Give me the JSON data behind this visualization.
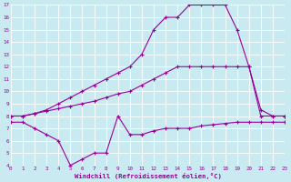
{
  "xlabel": "Windchill (Refroidissement éolien,°C)",
  "background_color": "#c8eaf0",
  "line_color": "#990099",
  "grid_color": "#ffffff",
  "xmin": 0,
  "xmax": 23,
  "ymin": 4,
  "ymax": 17,
  "line1_x": [
    0,
    1,
    2,
    3,
    4,
    5,
    6,
    7,
    8,
    9,
    10,
    11,
    12,
    13,
    14,
    15,
    16,
    17,
    18,
    19,
    20,
    21,
    22,
    23
  ],
  "line1_y": [
    8,
    8,
    8.2,
    8.5,
    9,
    9.5,
    10,
    10.5,
    11,
    11.5,
    12,
    13,
    15,
    16,
    16,
    17,
    17,
    17,
    17,
    15,
    12,
    8,
    8,
    8
  ],
  "line2_x": [
    0,
    1,
    2,
    3,
    4,
    5,
    6,
    7,
    8,
    9,
    10,
    11,
    12,
    13,
    14,
    15,
    16,
    17,
    18,
    19,
    20,
    21,
    22,
    23
  ],
  "line2_y": [
    8,
    8,
    8.2,
    8.4,
    8.6,
    8.8,
    9,
    9.2,
    9.5,
    9.8,
    10,
    10.5,
    11,
    11.5,
    12,
    12,
    12,
    12,
    12,
    12,
    12,
    8.5,
    8,
    8
  ],
  "line3_x": [
    0,
    1,
    2,
    3,
    4,
    5,
    6,
    7,
    8,
    9,
    10,
    11,
    12,
    13,
    14,
    15,
    16,
    17,
    18,
    19,
    20,
    21,
    22,
    23
  ],
  "line3_y": [
    7.5,
    7.5,
    7,
    6.5,
    6,
    4,
    4.5,
    5,
    5,
    8,
    6.5,
    6.5,
    6.8,
    7,
    7,
    7,
    7.2,
    7.3,
    7.4,
    7.5,
    7.5,
    7.5,
    7.5,
    7.5
  ]
}
